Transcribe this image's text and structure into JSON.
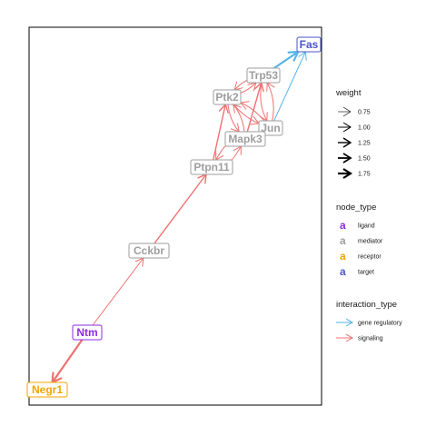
{
  "colors": {
    "gene_regulatory": "#56B4E9",
    "signaling": "#F07070",
    "ligand": "#8A2BE2",
    "mediator": "#9E9E9E",
    "receptor": "#F0A500",
    "target": "#4A56C8"
  },
  "nodes": [
    {
      "id": "fas",
      "label": "Fas",
      "type": "target"
    },
    {
      "id": "trp53",
      "label": "Trp53",
      "type": "mediator"
    },
    {
      "id": "ptk2",
      "label": "Ptk2",
      "type": "mediator"
    },
    {
      "id": "jun",
      "label": "Jun",
      "type": "mediator"
    },
    {
      "id": "mapk3",
      "label": "Mapk3",
      "type": "mediator"
    },
    {
      "id": "ptpn11",
      "label": "Ptpn11",
      "type": "mediator"
    },
    {
      "id": "cckbr",
      "label": "Cckbr",
      "type": "mediator"
    },
    {
      "id": "ntm",
      "label": "Ntm",
      "type": "ligand"
    },
    {
      "id": "negr1",
      "label": "Negr1",
      "type": "receptor"
    }
  ],
  "edges": [
    {
      "from": "trp53",
      "to": "fas",
      "type": "gene_regulatory",
      "weight": 1.75
    },
    {
      "from": "jun",
      "to": "fas",
      "type": "gene_regulatory",
      "weight": 1.0
    },
    {
      "from": "ntm",
      "to": "negr1",
      "type": "signaling",
      "weight": 1.75
    },
    {
      "from": "ntm",
      "to": "cckbr",
      "type": "signaling",
      "weight": 1.0
    },
    {
      "from": "cckbr",
      "to": "ptpn11",
      "type": "signaling",
      "weight": 1.25
    },
    {
      "from": "ptpn11",
      "to": "ptk2",
      "type": "signaling",
      "weight": 1.25
    },
    {
      "from": "ptpn11",
      "to": "mapk3",
      "type": "signaling",
      "weight": 1.0
    },
    {
      "from": "mapk3",
      "to": "ptpn11",
      "type": "signaling",
      "weight": 1.0
    },
    {
      "from": "ptk2",
      "to": "trp53",
      "type": "signaling",
      "weight": 1.0
    },
    {
      "from": "trp53",
      "to": "ptk2",
      "type": "signaling",
      "weight": 1.0
    },
    {
      "from": "ptk2",
      "to": "jun",
      "type": "signaling",
      "weight": 1.0
    },
    {
      "from": "jun",
      "to": "ptk2",
      "type": "signaling",
      "weight": 1.0
    },
    {
      "from": "trp53",
      "to": "jun",
      "type": "signaling",
      "weight": 1.0
    },
    {
      "from": "jun",
      "to": "trp53",
      "type": "signaling",
      "weight": 1.0
    },
    {
      "from": "mapk3",
      "to": "ptk2",
      "type": "signaling",
      "weight": 1.0
    },
    {
      "from": "mapk3",
      "to": "trp53",
      "type": "signaling",
      "weight": 1.25
    },
    {
      "from": "ptk2",
      "to": "mapk3",
      "type": "signaling",
      "weight": 1.0
    },
    {
      "from": "mapk3",
      "to": "jun",
      "type": "signaling",
      "weight": 1.0
    }
  ],
  "legend": {
    "weight": {
      "title": "weight",
      "items": [
        {
          "label": "0.75",
          "value": 0.75
        },
        {
          "label": "1.00",
          "value": 1.0
        },
        {
          "label": "1.25",
          "value": 1.25
        },
        {
          "label": "1.50",
          "value": 1.5
        },
        {
          "label": "1.75",
          "value": 1.75
        }
      ]
    },
    "node_type": {
      "title": "node_type",
      "glyph": "a",
      "items": [
        {
          "label": "ligand",
          "type": "ligand"
        },
        {
          "label": "mediator",
          "type": "mediator"
        },
        {
          "label": "receptor",
          "type": "receptor"
        },
        {
          "label": "target",
          "type": "target"
        }
      ]
    },
    "interaction_type": {
      "title": "interaction_type",
      "items": [
        {
          "label": "gene regulatory",
          "type": "gene_regulatory"
        },
        {
          "label": "signaling",
          "type": "signaling"
        }
      ]
    }
  }
}
